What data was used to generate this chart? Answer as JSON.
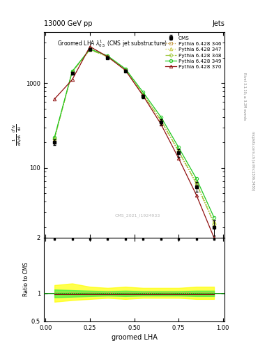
{
  "title_top": "13000 GeV pp",
  "title_right": "Jets",
  "plot_title": "Groomed LHA $\\lambda^{1}_{0.5}$ (CMS jet substructure)",
  "xlabel": "groomed LHA",
  "ylabel_ratio": "Ratio to CMS",
  "watermark": "CMS_2021_I1924933",
  "rivet_label": "Rivet 3.1.10; ≥ 3.2M events",
  "mcplots_label": "mcplots.cern.ch [arXiv:1306.3436]",
  "x_data": [
    0.05,
    0.15,
    0.25,
    0.35,
    0.45,
    0.55,
    0.65,
    0.75,
    0.85,
    0.95
  ],
  "cms_data": [
    200,
    1300,
    2500,
    2000,
    1400,
    700,
    350,
    150,
    60,
    20
  ],
  "cms_errors": [
    15,
    50,
    70,
    60,
    50,
    35,
    25,
    15,
    8,
    4
  ],
  "pythia_346": [
    220,
    1350,
    2480,
    2050,
    1430,
    730,
    360,
    155,
    65,
    22
  ],
  "pythia_347": [
    225,
    1360,
    2490,
    2060,
    1440,
    740,
    370,
    160,
    68,
    23
  ],
  "pythia_348": [
    222,
    1355,
    2485,
    2055,
    1435,
    735,
    365,
    158,
    66,
    22
  ],
  "pythia_349": [
    230,
    1380,
    2530,
    2100,
    1480,
    780,
    400,
    175,
    75,
    26
  ],
  "pythia_370": [
    650,
    1100,
    2700,
    2050,
    1420,
    710,
    330,
    130,
    48,
    15
  ],
  "color_346": "#c8a050",
  "color_347": "#c8c840",
  "color_348": "#a0c840",
  "color_349": "#20c820",
  "color_370": "#901010",
  "ylim_main": [
    15,
    4000
  ],
  "ylim_ratio": [
    0.5,
    2.0
  ],
  "band_yellow_lo": [
    0.85,
    0.88,
    0.9,
    0.92,
    0.9,
    0.92,
    0.92,
    0.92,
    0.9,
    0.9
  ],
  "band_yellow_hi": [
    1.15,
    1.18,
    1.12,
    1.1,
    1.12,
    1.1,
    1.1,
    1.1,
    1.12,
    1.12
  ],
  "band_green_lo": [
    0.93,
    0.94,
    0.95,
    0.96,
    0.95,
    0.96,
    0.96,
    0.96,
    0.95,
    0.95
  ],
  "band_green_hi": [
    1.07,
    1.06,
    1.05,
    1.04,
    1.05,
    1.04,
    1.04,
    1.04,
    1.05,
    1.05
  ]
}
